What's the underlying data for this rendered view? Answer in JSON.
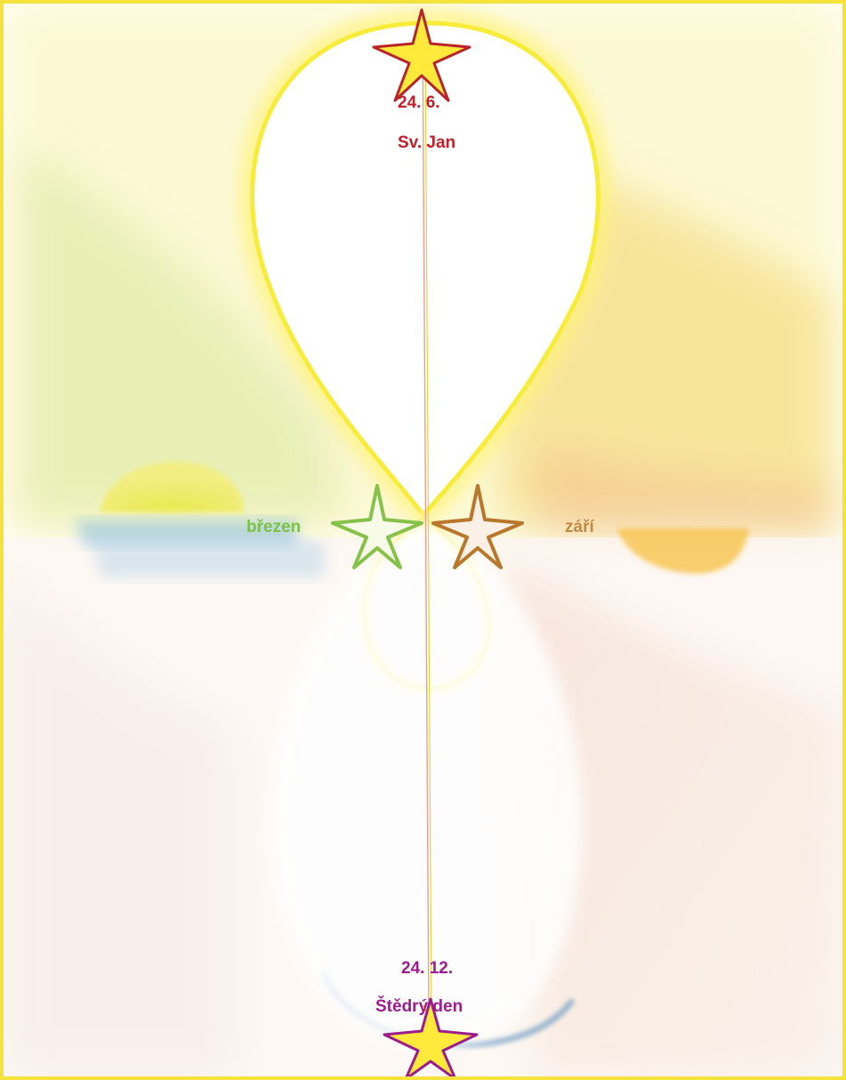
{
  "labels": {
    "summer_date": "24. 6.",
    "summer_name": "Sv. Jan",
    "spring": "březen",
    "autumn": "září",
    "winter_date": "24. 12.",
    "winter_name": "Štědrý den"
  },
  "colors": {
    "frame": "#f5e23a",
    "summer_text": "#c0202a",
    "winter_text": "#9b1d8d",
    "spring": "#7cc143",
    "autumn": "#b8772a",
    "loop_yellow": "#fff24a",
    "sea_blue": "#6aa9d8"
  },
  "icons": [
    "star-icon-summer",
    "star-icon-spring",
    "star-icon-autumn",
    "star-icon-winter"
  ]
}
